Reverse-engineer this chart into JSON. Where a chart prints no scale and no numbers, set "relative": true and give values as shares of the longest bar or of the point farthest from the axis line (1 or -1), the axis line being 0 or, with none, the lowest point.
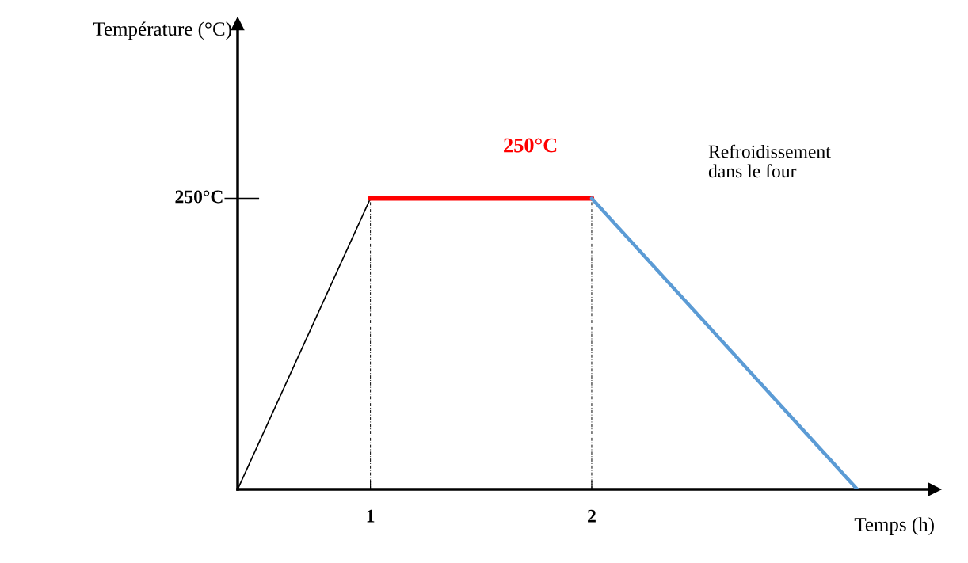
{
  "chart_data": {
    "type": "line",
    "xlabel": "Temps (h)",
    "relative": true,
    "xlim": [
      0.4,
      3.55
    ],
    "xticks": [
      1,
      2
    ],
    "series": [
      {
        "color": "#000000",
        "x": [
          0.4,
          1
        ],
        "values": [
          0,
          1
        ]
      },
      {
        "color": "#ff0000",
        "x": [
          1,
          2
        ],
        "values": [
          1,
          1
        ]
      },
      {
        "color": "#5b9bd5",
        "x": [
          2,
          3.2
        ],
        "values": [
          1,
          0
        ]
      }
    ],
    "ref_lines": [
      {
        "axis": "x",
        "value": 0.4,
        "color": "#000000",
        "line_style": "solid"
      },
      {
        "axis": "x",
        "value": 1,
        "color": "#000000",
        "line_style": "dashed"
      },
      {
        "axis": "x",
        "value": 2,
        "color": "#000000",
        "line_style": "dashed"
      }
    ],
    "annotations": [
      "Température (°C)",
      "250°C",
      "250°C",
      "Refroidissement\ndans le four"
    ],
    "grid": false,
    "legend": false,
    "marker": "none"
  }
}
